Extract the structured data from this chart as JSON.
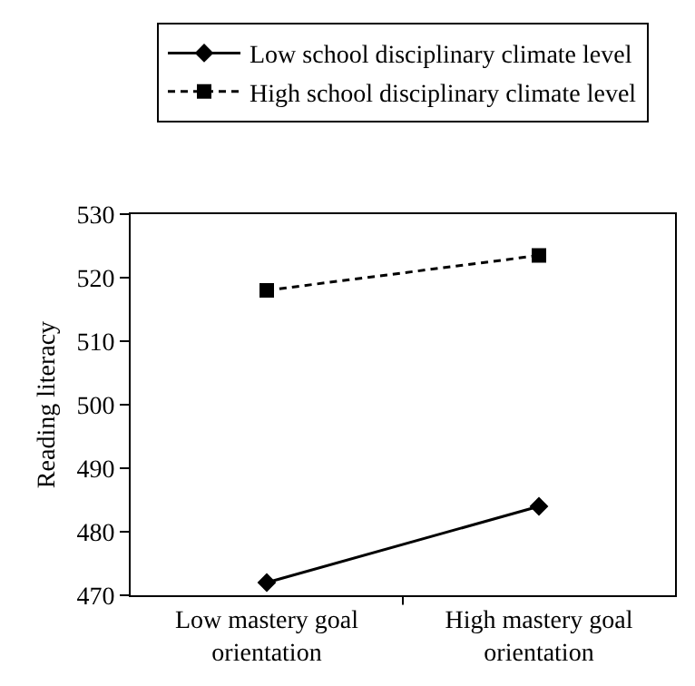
{
  "chart_data": {
    "type": "line",
    "ylabel": "Reading literacy",
    "categories": [
      "Low mastery goal orientation",
      "High mastery goal orientation"
    ],
    "series": [
      {
        "name": "Low school disciplinary climate level",
        "color": "#000000",
        "values": [
          472,
          484
        ],
        "marker": "diamond",
        "line_style": "solid"
      },
      {
        "name": "High school disciplinary climate level",
        "color": "#000000",
        "values": [
          518,
          523.5
        ],
        "marker": "square",
        "line_style": "dashed"
      }
    ],
    "ylim": [
      470,
      530
    ],
    "yticks": [
      470,
      480,
      490,
      500,
      510,
      520,
      530
    ],
    "legend": "top"
  }
}
